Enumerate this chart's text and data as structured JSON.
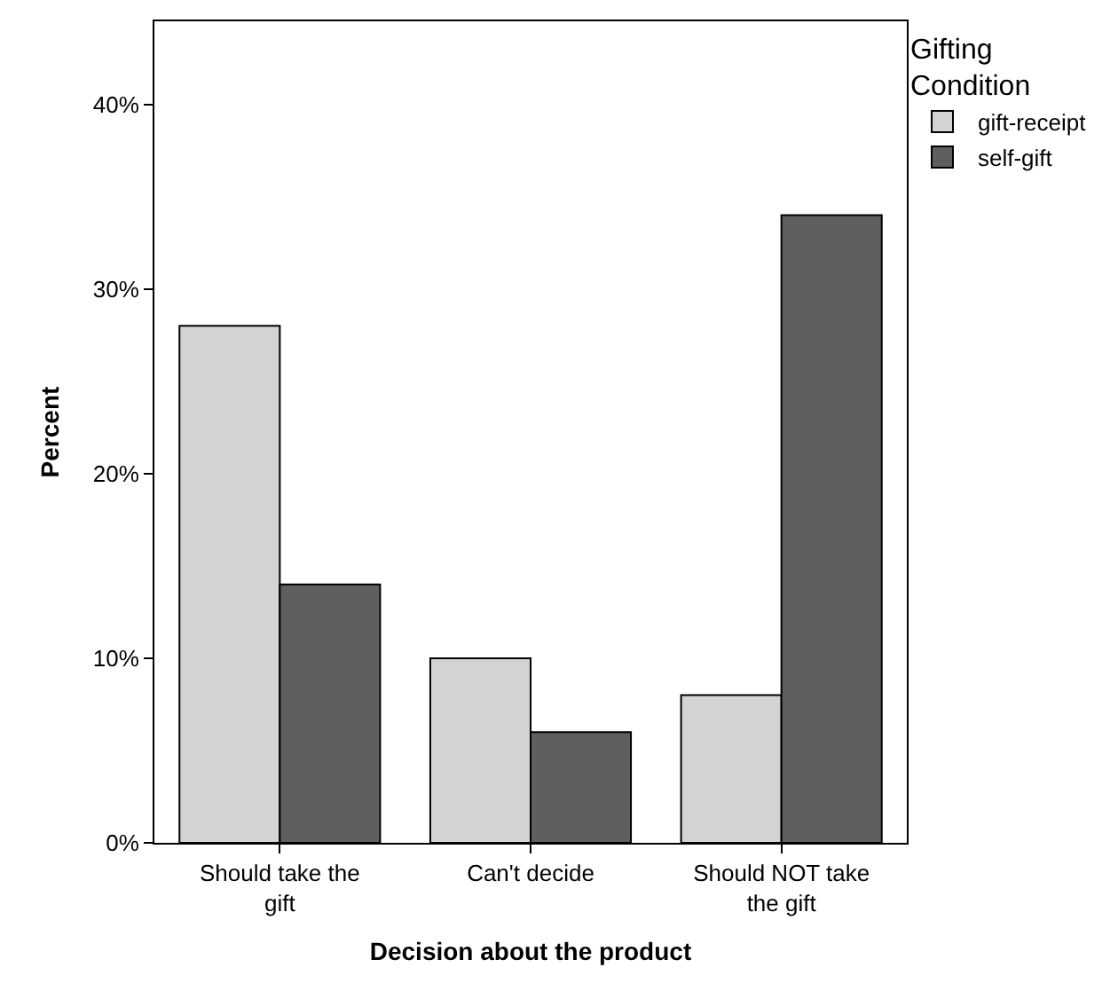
{
  "chart_data": {
    "type": "bar",
    "xlabel": "Decision about the product",
    "ylabel": "Percent",
    "legend_title": "Gifting Condition",
    "categories": [
      "Should take the gift",
      "Can't decide",
      "Should NOT take the gift"
    ],
    "series": [
      {
        "name": "gift-receipt",
        "color": "#d3d3d3",
        "values": [
          28,
          10,
          8
        ]
      },
      {
        "name": "self-gift",
        "color": "#5f5f5f",
        "values": [
          14,
          6,
          34
        ]
      }
    ],
    "ylim": [
      0,
      44.5
    ],
    "yticks": [
      {
        "value": 0,
        "label": "0%"
      },
      {
        "value": 10,
        "label": "10%"
      },
      {
        "value": 20,
        "label": "20%"
      },
      {
        "value": 30,
        "label": "30%"
      },
      {
        "value": 40,
        "label": "40%"
      }
    ],
    "legend": "top right"
  }
}
